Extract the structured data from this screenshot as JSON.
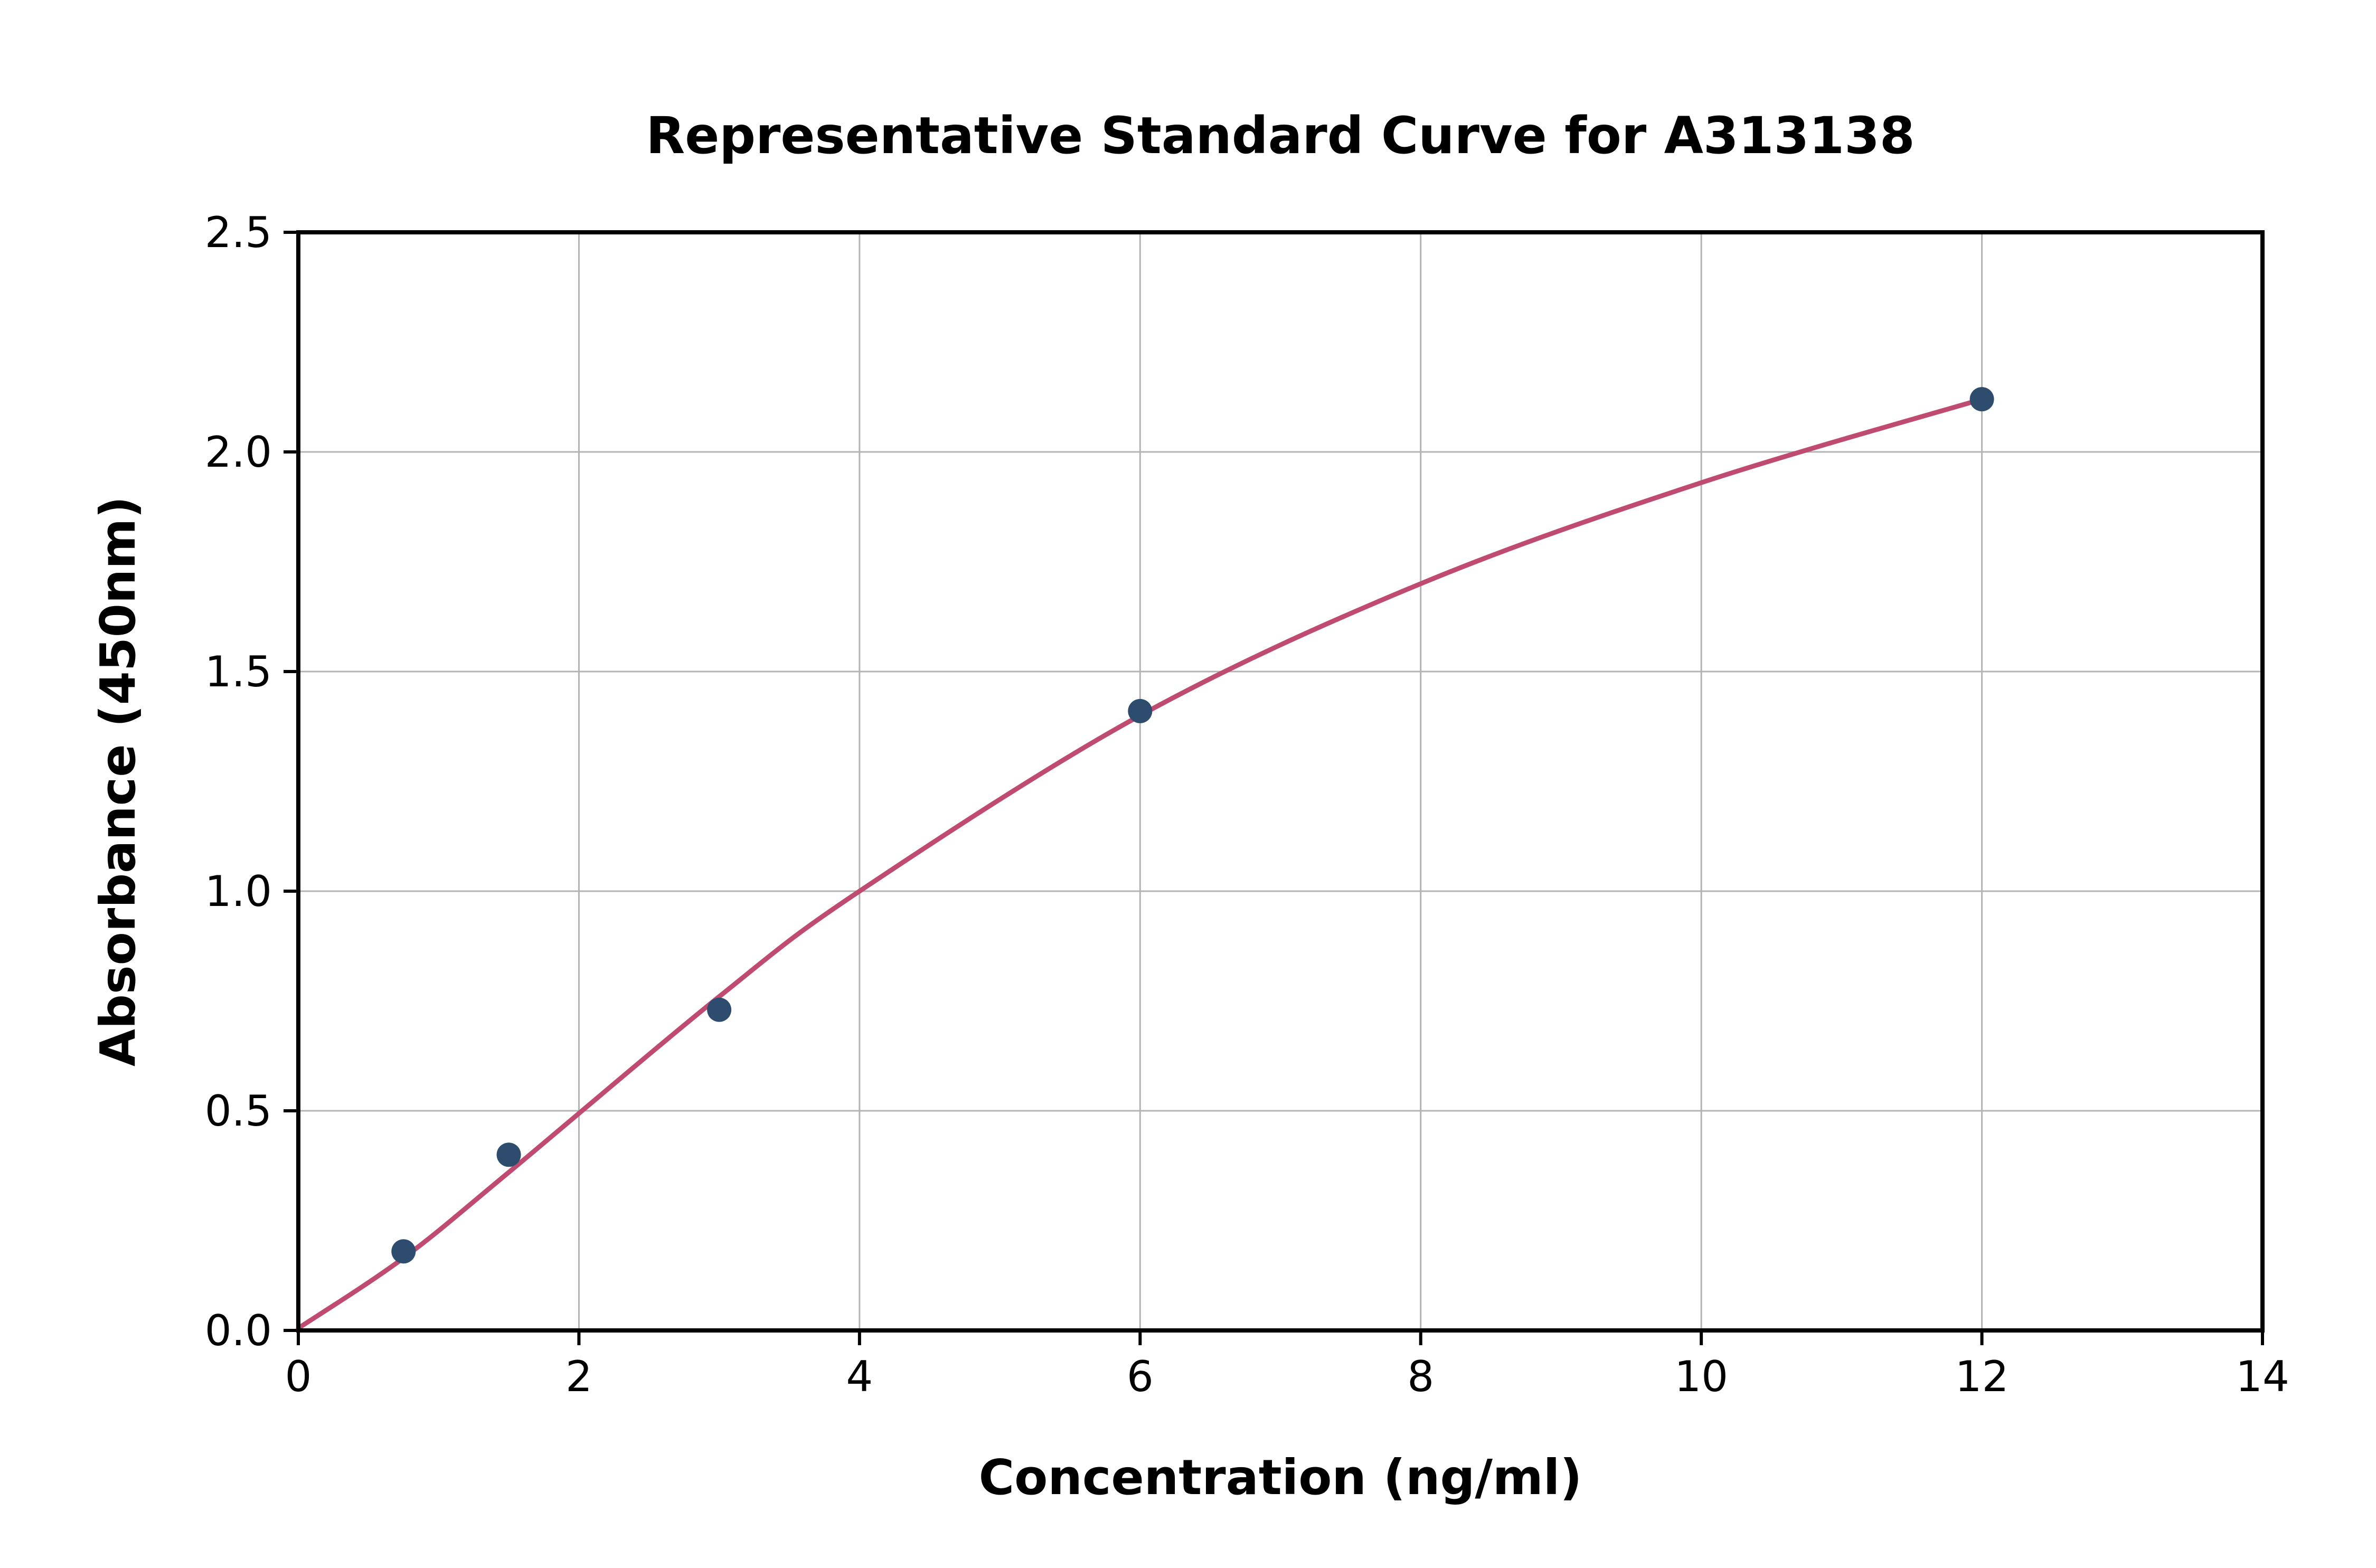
{
  "chart_data": {
    "type": "scatter",
    "title": "Representative Standard Curve for A313138",
    "xlabel": "Concentration (ng/ml)",
    "ylabel": "Absorbance (450nm)",
    "xlim": [
      0,
      14
    ],
    "ylim": [
      0,
      2.5
    ],
    "xticks": [
      0,
      2,
      4,
      6,
      8,
      10,
      12,
      14
    ],
    "xtick_labels": [
      "0",
      "2",
      "4",
      "6",
      "8",
      "10",
      "12",
      "14"
    ],
    "yticks": [
      0.0,
      0.5,
      1.0,
      1.5,
      2.0,
      2.5
    ],
    "ytick_labels": [
      "0.0",
      "0.5",
      "1.0",
      "1.5",
      "2.0",
      "2.5"
    ],
    "grid": true,
    "legend": "none",
    "points": {
      "x": [
        0.75,
        1.5,
        3,
        6,
        12
      ],
      "y": [
        0.18,
        0.4,
        0.73,
        1.41,
        2.12
      ]
    },
    "fit_curve": {
      "x": [
        0,
        0.75,
        1.5,
        3,
        4,
        6,
        8,
        10,
        12
      ],
      "y": [
        0.005,
        0.165,
        0.36,
        0.76,
        1.0,
        1.4,
        1.7,
        1.93,
        2.12
      ]
    },
    "colors": {
      "point_color": "#2e4d6e",
      "line_color": "#bf4b70",
      "grid_color": "#b3b3b3",
      "spine_color": "#000000",
      "background": "#ffffff"
    }
  }
}
